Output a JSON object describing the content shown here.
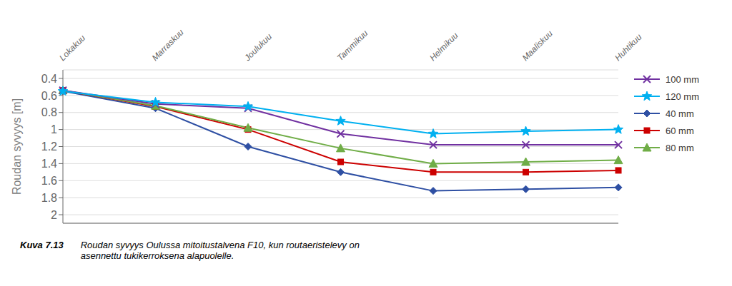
{
  "chart_data": {
    "type": "line",
    "categories": [
      "Lokakuu",
      "Marraskuu",
      "Joulukuu",
      "Tammikuu",
      "Helmikuu",
      "Maaliskuu",
      "Huhtikuu"
    ],
    "series": [
      {
        "name": "40 mm",
        "color": "#2E4FA3",
        "marker": "diamond",
        "values": [
          0.55,
          0.75,
          1.2,
          1.5,
          1.72,
          1.7,
          1.68
        ]
      },
      {
        "name": "60 mm",
        "color": "#CC0000",
        "marker": "square",
        "values": [
          0.54,
          0.73,
          1.0,
          1.38,
          1.5,
          1.5,
          1.48
        ]
      },
      {
        "name": "80 mm",
        "color": "#70AD47",
        "marker": "triangle",
        "values": [
          0.54,
          0.72,
          0.98,
          1.22,
          1.4,
          1.38,
          1.36
        ]
      },
      {
        "name": "100 mm",
        "color": "#7030A0",
        "marker": "x",
        "values": [
          0.54,
          0.7,
          0.75,
          1.05,
          1.18,
          1.18,
          1.18
        ]
      },
      {
        "name": "120 mm",
        "color": "#00B0F0",
        "marker": "star",
        "values": [
          0.55,
          0.68,
          0.73,
          0.9,
          1.05,
          1.02,
          1.0
        ]
      }
    ],
    "ylabel": "Roudan syvyys [m]",
    "ylim": [
      2.1,
      0.3
    ],
    "yticks": [
      0.4,
      0.6,
      0.8,
      1.0,
      1.2,
      1.4,
      1.6,
      1.8,
      2.0
    ],
    "grid": true,
    "legend": "right",
    "annotations": [
      "Kuva 7.13",
      "Roudan syvyys Oulussa mitoitustalvena F10, kun routaeristelevy on\nasennettu tukikerroksena alapuolelle."
    ]
  }
}
